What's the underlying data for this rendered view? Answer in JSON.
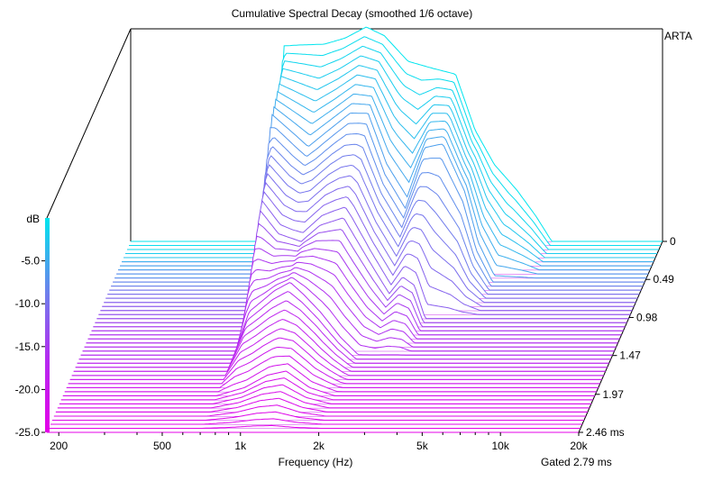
{
  "chart_data": {
    "type": "waterfall",
    "title": "Cumulative Spectral Decay (smoothed 1/6 octave)",
    "software_label": "ARTA",
    "xlabel": "Frequency (Hz)",
    "x_scale": "log",
    "xlim": [
      180,
      20000
    ],
    "x_ticks": [
      200,
      500,
      1000,
      2000,
      5000,
      10000,
      20000
    ],
    "x_tick_labels": [
      "200",
      "500",
      "1k",
      "2k",
      "5k",
      "10k",
      "20k"
    ],
    "zlabel": "dB",
    "zlim": [
      -25,
      0
    ],
    "z_ticks": [
      -5,
      -10,
      -15,
      -20,
      -25
    ],
    "z_tick_labels": [
      "-5.0",
      "-10.0",
      "-15.0",
      "-20.0",
      "-25.0"
    ],
    "time_unit": "ms",
    "time_ticks": [
      0,
      0.49,
      0.98,
      1.47,
      1.97,
      2.46
    ],
    "time_tick_labels": [
      "0",
      "0.49",
      "0.98",
      "1.47",
      "1.97",
      "2.46 ms"
    ],
    "gated_label": "Gated 2.79 ms",
    "slice_count": 48,
    "colormap": [
      "#00e5ee",
      "#6e80ec",
      "#b32cf0",
      "#e400e8"
    ],
    "floor_line_color": "#cc33ee",
    "series": [
      {
        "time_ms": 0.0,
        "freq_hz": [
          640,
          700,
          800,
          1000,
          1200,
          1450,
          1700,
          2100,
          2600,
          3200,
          3800,
          4500,
          5500,
          6500,
          7500
        ],
        "level_db": [
          -25,
          -2.2,
          -2.1,
          -2.0,
          -1.3,
          0,
          -1.0,
          -4.0,
          -4.8,
          -5.5,
          -12,
          -16,
          -19,
          -22,
          -25
        ]
      },
      {
        "time_ms": 0.49,
        "freq_hz": [
          680,
          720,
          850,
          1000,
          1200,
          1450,
          1700,
          2000,
          2400,
          2800,
          3300,
          4000,
          4500,
          5200
        ],
        "level_db": [
          -25,
          -6,
          -8,
          -10,
          -8,
          -6,
          -6,
          -12,
          -16,
          -10,
          -9.5,
          -15,
          -21,
          -25
        ]
      },
      {
        "time_ms": 0.98,
        "freq_hz": [
          700,
          760,
          900,
          1100,
          1300,
          1600,
          2000,
          2400,
          2700,
          3000,
          3300
        ],
        "level_db": [
          -25,
          -12,
          -15,
          -16,
          -14,
          -13,
          -18,
          -22,
          -20,
          -21,
          -25
        ]
      },
      {
        "time_ms": 1.47,
        "freq_hz": [
          700,
          800,
          1000,
          1150,
          1300,
          1500,
          1800,
          2100
        ],
        "level_db": [
          -25,
          -20,
          -17.5,
          -16.5,
          -18,
          -20,
          -23,
          -25
        ]
      },
      {
        "time_ms": 1.97,
        "freq_hz": [
          700,
          900,
          1100,
          1300,
          1600,
          2000
        ],
        "level_db": [
          -25,
          -24,
          -22.5,
          -22,
          -24,
          -25
        ]
      },
      {
        "time_ms": 2.46,
        "freq_hz": [
          700,
          1000,
          1300,
          1800
        ],
        "level_db": [
          -25,
          -25,
          -25,
          -25
        ]
      }
    ]
  }
}
